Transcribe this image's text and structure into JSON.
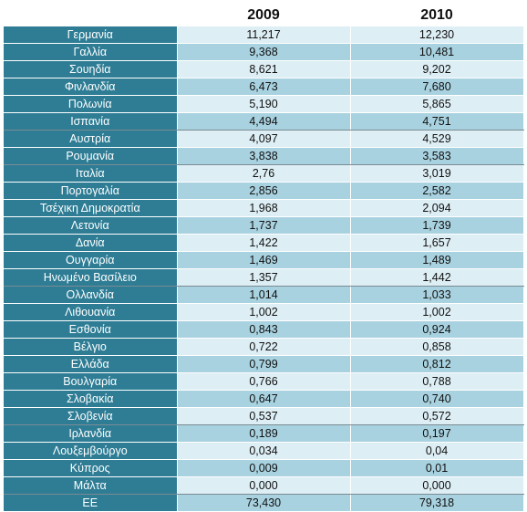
{
  "header": {
    "col1": "2009",
    "col2": "2010"
  },
  "colors": {
    "country_bg": "#2e7d95",
    "row_light": "#ddeef4",
    "row_dark": "#a9d2e0"
  },
  "rows": [
    {
      "country": "Γερμανία",
      "v2009": "11,217",
      "v2010": "12,230"
    },
    {
      "country": "Γαλλία",
      "v2009": "9,368",
      "v2010": "10,481"
    },
    {
      "country": "Σουηδία",
      "v2009": "8,621",
      "v2010": "9,202"
    },
    {
      "country": "Φινλανδία",
      "v2009": "6,473",
      "v2010": "7,680"
    },
    {
      "country": "Πολωνία",
      "v2009": "5,190",
      "v2010": "5,865"
    },
    {
      "country": "Ισπανία",
      "v2009": "4,494",
      "v2010": "4,751"
    },
    {
      "country": "Αυστρία",
      "v2009": "4,097",
      "v2010": "4,529"
    },
    {
      "country": "Ρουμανία",
      "v2009": "3,838",
      "v2010": "3,583"
    },
    {
      "country": "Ιταλία",
      "v2009": "2,76",
      "v2010": "3,019"
    },
    {
      "country": "Πορτογαλία",
      "v2009": "2,856",
      "v2010": "2,582"
    },
    {
      "country": "Τσέχικη Δημοκρατία",
      "v2009": "1,968",
      "v2010": "2,094"
    },
    {
      "country": "Λετονία",
      "v2009": "1,737",
      "v2010": "1,739"
    },
    {
      "country": "Δανία",
      "v2009": "1,422",
      "v2010": "1,657"
    },
    {
      "country": "Ουγγαρία",
      "v2009": "1,469",
      "v2010": "1,489"
    },
    {
      "country": "Ηνωμένο Βασίλειο",
      "v2009": "1,357",
      "v2010": "1,442"
    },
    {
      "country": "Ολλανδία",
      "v2009": "1,014",
      "v2010": "1,033"
    },
    {
      "country": "Λιθουανία",
      "v2009": "1,002",
      "v2010": "1,002"
    },
    {
      "country": "Εσθονία",
      "v2009": "0,843",
      "v2010": "0,924"
    },
    {
      "country": "Βέλγιο",
      "v2009": "0,722",
      "v2010": "0,858"
    },
    {
      "country": "Ελλάδα",
      "v2009": "0,799",
      "v2010": "0,812"
    },
    {
      "country": "Βουλγαρία",
      "v2009": "0,766",
      "v2010": "0,788"
    },
    {
      "country": "Σλοβακία",
      "v2009": "0,647",
      "v2010": "0,740"
    },
    {
      "country": "Σλοβενία",
      "v2009": "0,537",
      "v2010": "0,572"
    },
    {
      "country": "Ιρλανδία",
      "v2009": "0,189",
      "v2010": "0,197"
    },
    {
      "country": "Λουξεμβούργο",
      "v2009": "0,034",
      "v2010": "0,04"
    },
    {
      "country": "Κύπρος",
      "v2009": "0,009",
      "v2010": "0,01"
    },
    {
      "country": "Μάλτα",
      "v2009": "0,000",
      "v2010": "0,000"
    },
    {
      "country": "ΕΕ",
      "v2009": "73,430",
      "v2010": "79,318"
    }
  ]
}
